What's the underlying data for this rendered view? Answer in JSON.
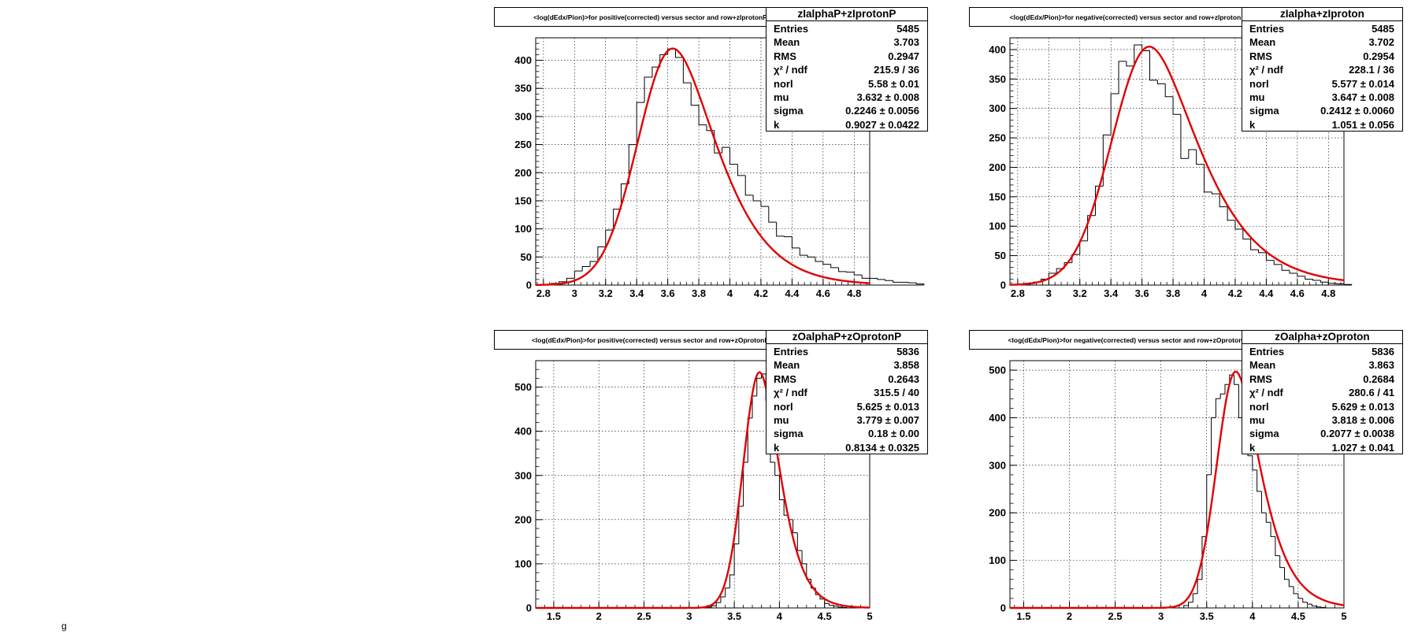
{
  "corner_text": "g",
  "chart_data": [
    {
      "type": "histogram",
      "title": "<log(dEdx/Pion)>for positive(corrected) versus sector and row+zIprotonP",
      "stats_title": "zIalphaP+zIprotonP",
      "xlim": [
        2.75,
        4.9
      ],
      "ylim": [
        0,
        440
      ],
      "xticks": [
        2.8,
        3,
        3.2,
        3.4,
        3.6,
        3.8,
        4,
        4.2,
        4.4,
        4.6,
        4.8
      ],
      "yticks": [
        0,
        50,
        100,
        150,
        200,
        250,
        300,
        350,
        400
      ],
      "bin_start": 2.75,
      "bin_width": 0.05,
      "values": [
        0,
        0,
        3,
        6,
        12,
        25,
        33,
        42,
        68,
        98,
        135,
        180,
        250,
        325,
        370,
        388,
        410,
        420,
        405,
        360,
        320,
        285,
        275,
        235,
        245,
        215,
        195,
        160,
        150,
        140,
        112,
        87,
        86,
        66,
        53,
        50,
        42,
        37,
        31,
        24,
        23,
        18,
        12,
        12,
        10,
        8,
        5,
        5,
        4,
        2
      ],
      "fit": {
        "amp": 421,
        "mu": 3.632,
        "sigma": 0.2246,
        "k": 0.9027
      },
      "stats": [
        {
          "label": "Entries",
          "value": "5485"
        },
        {
          "label": "Mean",
          "value": "3.703"
        },
        {
          "label": "RMS",
          "value": "0.2947"
        },
        {
          "label": "χ² / ndf",
          "value": "215.9 / 36"
        },
        {
          "label": "norl",
          "value": "5.58 ± 0.01"
        },
        {
          "label": "mu",
          "value": "3.632 ± 0.008"
        },
        {
          "label": "sigma",
          "value": "0.2246 ± 0.0056"
        },
        {
          "label": "k",
          "value": "0.9027 ± 0.0422"
        }
      ]
    },
    {
      "type": "histogram",
      "title": "<log(dEdx/Pion)>for negative(corrected) versus sector and row+zIproton",
      "stats_title": "zIalpha+zIproton",
      "xlim": [
        2.75,
        4.9
      ],
      "ylim": [
        0,
        420
      ],
      "xticks": [
        2.8,
        3,
        3.2,
        3.4,
        3.6,
        3.8,
        4,
        4.2,
        4.4,
        4.6,
        4.8
      ],
      "yticks": [
        0,
        50,
        100,
        150,
        200,
        250,
        300,
        350,
        400
      ],
      "bin_start": 2.75,
      "bin_width": 0.05,
      "values": [
        0,
        2,
        3,
        5,
        10,
        20,
        28,
        38,
        52,
        75,
        118,
        168,
        255,
        325,
        380,
        372,
        408,
        398,
        348,
        342,
        320,
        290,
        215,
        230,
        205,
        158,
        155,
        133,
        110,
        95,
        78,
        60,
        55,
        42,
        35,
        25,
        20,
        15,
        10,
        8,
        5,
        3,
        2,
        1
      ],
      "fit": {
        "amp": 405,
        "mu": 3.647,
        "sigma": 0.2412,
        "k": 1.051
      },
      "stats": [
        {
          "label": "Entries",
          "value": "5485"
        },
        {
          "label": "Mean",
          "value": "3.702"
        },
        {
          "label": "RMS",
          "value": "0.2954"
        },
        {
          "label": "χ² / ndf",
          "value": "228.1 / 36"
        },
        {
          "label": "norl",
          "value": "5.577 ± 0.014"
        },
        {
          "label": "mu",
          "value": "3.647 ± 0.008"
        },
        {
          "label": "sigma",
          "value": "0.2412 ± 0.0060"
        },
        {
          "label": "k",
          "value": "1.051 ± 0.056"
        }
      ]
    },
    {
      "type": "histogram",
      "title": "<log(dEdx/Pion)>for positive(corrected) versus sector and row+zOprotonP",
      "stats_title": "zOalphaP+zOprotonP",
      "xlim": [
        1.3,
        5.0
      ],
      "ylim": [
        0,
        560
      ],
      "xticks": [
        1.5,
        2,
        2.5,
        3,
        3.5,
        4,
        4.5,
        5
      ],
      "yticks": [
        0,
        100,
        200,
        300,
        400,
        500
      ],
      "bin_start": 3.2,
      "bin_width": 0.05,
      "values": [
        2,
        5,
        12,
        25,
        45,
        75,
        145,
        230,
        330,
        430,
        480,
        520,
        530,
        470,
        330,
        300,
        245,
        210,
        200,
        170,
        130,
        100,
        65,
        45,
        30,
        20,
        10,
        6,
        4,
        2,
        1,
        0
      ],
      "fit": {
        "amp": 534,
        "mu": 3.779,
        "sigma": 0.18,
        "k": 0.8134
      },
      "stats": [
        {
          "label": "Entries",
          "value": "5836"
        },
        {
          "label": "Mean",
          "value": "3.858"
        },
        {
          "label": "RMS",
          "value": "0.2643"
        },
        {
          "label": "χ² / ndf",
          "value": "315.5 / 40"
        },
        {
          "label": "norl",
          "value": "5.625 ± 0.013"
        },
        {
          "label": "mu",
          "value": "3.779 ± 0.007"
        },
        {
          "label": "sigma",
          "value": "0.18 ± 0.00"
        },
        {
          "label": "k",
          "value": "0.8134 ± 0.0325"
        }
      ]
    },
    {
      "type": "histogram",
      "title": "<log(dEdx/Pion)>for negative(corrected) versus sector and row+zOproton",
      "stats_title": "zOalpha+zOproton",
      "xlim": [
        1.35,
        5.0
      ],
      "ylim": [
        0,
        520
      ],
      "xticks": [
        1.5,
        2,
        2.5,
        3,
        3.5,
        4,
        4.5,
        5
      ],
      "yticks": [
        0,
        100,
        200,
        300,
        400,
        500
      ],
      "bin_start": 3.25,
      "bin_width": 0.05,
      "values": [
        5,
        12,
        30,
        60,
        150,
        280,
        400,
        440,
        450,
        470,
        490,
        470,
        400,
        360,
        320,
        290,
        245,
        200,
        180,
        150,
        110,
        85,
        60,
        45,
        30,
        20,
        12,
        8,
        4,
        2,
        1
      ],
      "fit": {
        "amp": 497,
        "mu": 3.818,
        "sigma": 0.2077,
        "k": 1.027
      },
      "stats": [
        {
          "label": "Entries",
          "value": "5836"
        },
        {
          "label": "Mean",
          "value": "3.863"
        },
        {
          "label": "RMS",
          "value": "0.2684"
        },
        {
          "label": "χ² / ndf",
          "value": "280.6 / 41"
        },
        {
          "label": "norl",
          "value": "5.629 ± 0.013"
        },
        {
          "label": "mu",
          "value": "3.818 ± 0.006"
        },
        {
          "label": "sigma",
          "value": "0.2077 ± 0.0038"
        },
        {
          "label": "k",
          "value": "1.027 ± 0.041"
        }
      ]
    }
  ]
}
